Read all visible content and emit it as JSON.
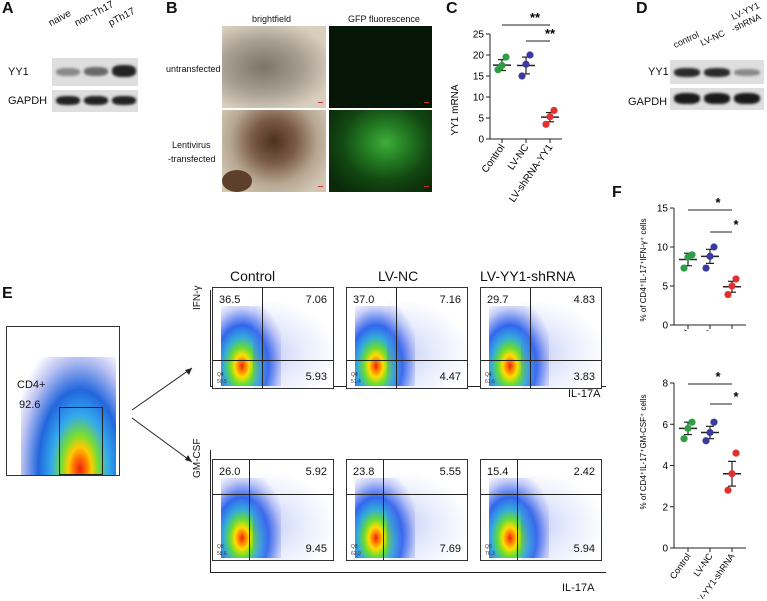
{
  "panels": {
    "A": {
      "label": "A",
      "lanes": [
        "naive",
        "non-Th17",
        "pTh17"
      ],
      "blots": [
        "YY1",
        "GAPDH"
      ]
    },
    "B": {
      "label": "B",
      "columns": [
        "brightfield",
        "GFP fluorescence"
      ],
      "rows": [
        "untransfected",
        "Lentivirus",
        "-transfected"
      ]
    },
    "C": {
      "label": "C",
      "ylabel": "YY1 mRNA",
      "sig": [
        "**",
        "**"
      ]
    },
    "D": {
      "label": "D",
      "lanes": [
        "control",
        "LV-NC",
        "LV-YY1",
        "-shRNA"
      ],
      "blots": [
        "YY1",
        "GAPDH"
      ]
    },
    "E": {
      "label": "E",
      "gate_label": "CD4+",
      "gate_value": "92.6",
      "columns": [
        "Control",
        "LV-NC",
        "LV-YY1-shRNA"
      ],
      "row1_y": "IFN-γ",
      "row2_y": "GM-CSF",
      "x_label": "IL-17A",
      "row1_quadrants": [
        {
          "ul": "36.5",
          "ur": "7.06",
          "lr": "5.93",
          "q": "Q4",
          "qv": "50.5"
        },
        {
          "ul": "37.0",
          "ur": "7.16",
          "lr": "4.47",
          "q": "Q4",
          "qv": "51.4"
        },
        {
          "ul": "29.7",
          "ur": "4.83",
          "lr": "3.83",
          "q": "Q4",
          "qv": "61.6"
        }
      ],
      "row2_quadrants": [
        {
          "ul": "26.0",
          "ur": "5.92",
          "lr": "9.45",
          "q": "Q8",
          "qv": "58.6"
        },
        {
          "ul": "23.8",
          "ur": "5.55",
          "lr": "7.69",
          "q": "Q8",
          "qv": "62.9"
        },
        {
          "ul": "15.4",
          "ur": "2.42",
          "lr": "5.94",
          "q": "Q8",
          "qv": "76.3"
        }
      ]
    },
    "F": {
      "label": "F",
      "ylabel_top": "% of CD4⁺IL-17⁺IFN-γ⁺ cells",
      "ylabel_bottom": "% of CD4⁺IL-17⁺GM-CSF⁺ cells",
      "sig": [
        "*",
        "*"
      ]
    }
  },
  "chart_data": [
    {
      "id": "C",
      "type": "scatter",
      "categories": [
        "Control",
        "LV-NC",
        "LV-shRNA-YY1"
      ],
      "ylabel": "YY1 mRNA",
      "ylim": [
        0,
        25
      ],
      "yticks": [
        0,
        5,
        10,
        15,
        20,
        25
      ],
      "series": [
        {
          "points": [
            [
              0,
              16.5
            ],
            [
              0,
              17.5
            ],
            [
              0,
              19.5
            ]
          ],
          "mean": 17.6,
          "sem": 1.3,
          "color": "#2e9e45"
        },
        {
          "points": [
            [
              1,
              15.0
            ],
            [
              1,
              17.8
            ],
            [
              1,
              20.0
            ]
          ],
          "mean": 17.5,
          "sem": 2.0,
          "color": "#3a3aa0"
        },
        {
          "points": [
            [
              2,
              3.5
            ],
            [
              2,
              5.3
            ],
            [
              2,
              6.8
            ]
          ],
          "mean": 5.2,
          "sem": 1.1,
          "color": "#e03030"
        }
      ]
    },
    {
      "id": "F-top",
      "type": "scatter",
      "categories": [
        "Control",
        "LV-NC",
        "LV-YY1-shRNA"
      ],
      "ylabel": "% of CD4⁺IL-17⁺IFN-γ⁺ cells",
      "ylim": [
        0,
        15
      ],
      "yticks": [
        0,
        5,
        10,
        15
      ],
      "series": [
        {
          "points": [
            [
              0,
              7.3
            ],
            [
              0,
              8.7
            ],
            [
              0,
              9.0
            ]
          ],
          "mean": 8.4,
          "sem": 0.8,
          "color": "#2e9e45"
        },
        {
          "points": [
            [
              1,
              7.3
            ],
            [
              1,
              8.8
            ],
            [
              1,
              10.0
            ]
          ],
          "mean": 8.8,
          "sem": 0.9,
          "color": "#3a3aa0"
        },
        {
          "points": [
            [
              2,
              3.9
            ],
            [
              2,
              5.0
            ],
            [
              2,
              5.9
            ]
          ],
          "mean": 4.9,
          "sem": 0.7,
          "color": "#e03030"
        }
      ]
    },
    {
      "id": "F-bottom",
      "type": "scatter",
      "categories": [
        "Control",
        "LV-NC",
        "LV-YY1-shRNA"
      ],
      "ylabel": "% of CD4⁺IL-17⁺GM-CSF⁺ cells",
      "ylim": [
        0,
        8
      ],
      "yticks": [
        0,
        2,
        4,
        6,
        8
      ],
      "series": [
        {
          "points": [
            [
              0,
              5.3
            ],
            [
              0,
              5.8
            ],
            [
              0,
              6.1
            ]
          ],
          "mean": 5.8,
          "sem": 0.3,
          "color": "#2e9e45"
        },
        {
          "points": [
            [
              1,
              5.2
            ],
            [
              1,
              5.6
            ],
            [
              1,
              6.1
            ]
          ],
          "mean": 5.6,
          "sem": 0.3,
          "color": "#3a3aa0"
        },
        {
          "points": [
            [
              2,
              2.8
            ],
            [
              2,
              3.6
            ],
            [
              2,
              4.6
            ]
          ],
          "mean": 3.6,
          "sem": 0.6,
          "color": "#e03030"
        }
      ]
    }
  ]
}
